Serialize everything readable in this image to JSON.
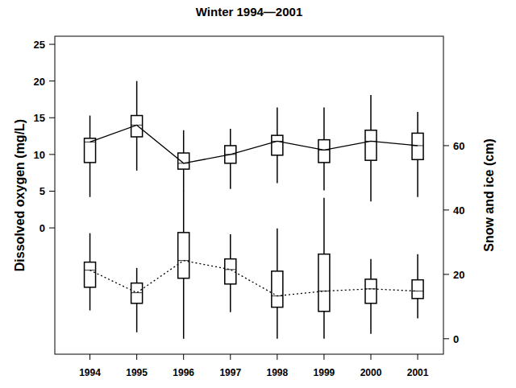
{
  "chart_data": {
    "type": "box",
    "title": "Winter 1994—2001",
    "ylabel": "Dissolved oxygen (mg/L)",
    "y2label": "Snow and ice (cm)",
    "categories": [
      "1994",
      "1995",
      "1996",
      "1997",
      "1998",
      "1999",
      "2000",
      "2001"
    ],
    "ylim": [
      -17.2,
      26.1
    ],
    "yticks": [
      0,
      5,
      10,
      15,
      20,
      25
    ],
    "y2lim": [
      -4.8,
      94
    ],
    "y2ticks": [
      0,
      20,
      40,
      60
    ],
    "series": [
      {
        "color": "#000000",
        "line_style": "solid",
        "min": [
          4.2,
          7.8,
          5.0,
          5.3,
          6.1,
          5.1,
          3.6,
          4.2
        ],
        "q1": [
          8.9,
          12.4,
          8.0,
          8.8,
          9.9,
          8.9,
          9.2,
          9.3
        ],
        "median": [
          11.7,
          14.0,
          8.8,
          10.0,
          11.8,
          10.6,
          11.8,
          11.2
        ],
        "q3": [
          12.2,
          15.3,
          10.2,
          11.2,
          12.6,
          12.0,
          13.3,
          12.9
        ],
        "max": [
          15.3,
          20.0,
          13.3,
          13.5,
          16.4,
          16.4,
          18.1,
          15.8
        ]
      },
      {
        "color": "#000000",
        "line_style": "dotted",
        "axis": "y2",
        "min": [
          8.8,
          2.0,
          0,
          8.3,
          0,
          0,
          1.5,
          6.3
        ],
        "q1": [
          16.0,
          11.0,
          18.8,
          17.0,
          9.8,
          8.5,
          11.0,
          12.5
        ],
        "median": [
          21.3,
          14.3,
          24.3,
          21.5,
          13.3,
          14.8,
          15.5,
          14.8
        ],
        "q3": [
          23.8,
          17.3,
          33.0,
          24.8,
          21.0,
          26.3,
          18.5,
          18.3
        ],
        "max": [
          32.8,
          22.0,
          46.0,
          32.5,
          34.3,
          43.8,
          24.8,
          26.3
        ]
      }
    ]
  }
}
